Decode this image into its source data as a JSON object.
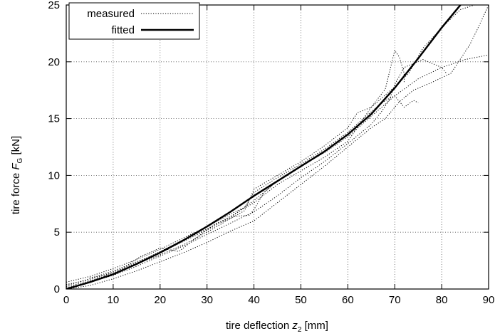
{
  "chart_data": {
    "type": "line",
    "xlabel": {
      "prefix": "tire deflection ",
      "var": "z",
      "sub": "2",
      "suffix": " [mm]"
    },
    "ylabel": {
      "prefix": "tire force ",
      "var": "F",
      "sub": "G",
      "suffix": " [kN]"
    },
    "xlim": [
      0,
      90
    ],
    "ylim": [
      0,
      25
    ],
    "xticks": [
      0,
      10,
      20,
      30,
      40,
      50,
      60,
      70,
      80,
      90
    ],
    "yticks": [
      0,
      5,
      10,
      15,
      20,
      25
    ],
    "grid": true,
    "legend": {
      "position": "top-left"
    },
    "series": [
      {
        "name": "measured",
        "style": "dotted",
        "color": "#000000",
        "traces": [
          [
            [
              0,
              0.3
            ],
            [
              5,
              0.9
            ],
            [
              10,
              1.6
            ],
            [
              15,
              2.4
            ],
            [
              20,
              3.2
            ],
            [
              25,
              4.2
            ],
            [
              30,
              5.2
            ],
            [
              35,
              6.3
            ],
            [
              40,
              7.8
            ],
            [
              45,
              9.5
            ],
            [
              50,
              10.8
            ],
            [
              55,
              12.0
            ],
            [
              60,
              13.4
            ],
            [
              65,
              15.2
            ],
            [
              70,
              17.0
            ],
            [
              75,
              18.5
            ],
            [
              80,
              19.5
            ],
            [
              85,
              20.2
            ],
            [
              90,
              20.6
            ]
          ],
          [
            [
              0,
              0.6
            ],
            [
              5,
              1.1
            ],
            [
              10,
              1.8
            ],
            [
              15,
              2.6
            ],
            [
              20,
              3.5
            ],
            [
              25,
              4.5
            ],
            [
              30,
              5.5
            ],
            [
              35,
              6.6
            ],
            [
              38,
              7.2
            ],
            [
              40,
              8.5
            ],
            [
              45,
              9.8
            ],
            [
              50,
              11.0
            ],
            [
              55,
              12.3
            ],
            [
              60,
              13.8
            ],
            [
              65,
              15.6
            ],
            [
              68,
              16.6
            ],
            [
              70,
              17.0
            ],
            [
              72,
              16.0
            ],
            [
              74,
              16.6
            ],
            [
              75,
              16.4
            ]
          ],
          [
            [
              0,
              0.1
            ],
            [
              5,
              0.6
            ],
            [
              10,
              1.2
            ],
            [
              15,
              2.0
            ],
            [
              20,
              2.9
            ],
            [
              25,
              3.8
            ],
            [
              30,
              4.8
            ],
            [
              35,
              5.8
            ],
            [
              40,
              6.8
            ],
            [
              45,
              8.2
            ],
            [
              50,
              9.8
            ],
            [
              55,
              11.2
            ],
            [
              60,
              12.8
            ],
            [
              65,
              14.5
            ],
            [
              67,
              15.5
            ],
            [
              68,
              16.1
            ],
            [
              69,
              16.8
            ],
            [
              70,
              18.0
            ],
            [
              72,
              19.5
            ],
            [
              76,
              20.2
            ],
            [
              80,
              19.5
            ],
            [
              81,
              19.0
            ]
          ],
          [
            [
              0,
              0.2
            ],
            [
              5,
              0.7
            ],
            [
              10,
              1.4
            ],
            [
              15,
              2.2
            ],
            [
              20,
              3.0
            ],
            [
              25,
              3.9
            ],
            [
              30,
              5.0
            ],
            [
              35,
              6.2
            ],
            [
              38,
              6.9
            ],
            [
              40,
              8.8
            ],
            [
              45,
              10.0
            ],
            [
              50,
              11.2
            ],
            [
              55,
              12.6
            ],
            [
              60,
              14.2
            ],
            [
              62,
              15.5
            ],
            [
              65,
              16.0
            ],
            [
              70,
              17.8
            ],
            [
              73,
              19.0
            ],
            [
              76,
              21.2
            ],
            [
              80,
              23.0
            ],
            [
              84,
              24.6
            ],
            [
              87,
              25.0
            ]
          ],
          [
            [
              0,
              0.4
            ],
            [
              5,
              0.8
            ],
            [
              10,
              1.5
            ],
            [
              15,
              2.3
            ],
            [
              20,
              3.3
            ],
            [
              25,
              4.3
            ],
            [
              30,
              5.3
            ],
            [
              35,
              6.4
            ],
            [
              40,
              7.6
            ],
            [
              45,
              9.2
            ],
            [
              50,
              10.4
            ],
            [
              55,
              11.6
            ],
            [
              60,
              13.0
            ],
            [
              63,
              14.8
            ],
            [
              65,
              16.0
            ],
            [
              68,
              17.6
            ],
            [
              70,
              21.0
            ],
            [
              71,
              20.4
            ],
            [
              72,
              19.0
            ],
            [
              72,
              18.2
            ]
          ],
          [
            [
              0,
              0.0
            ],
            [
              5,
              0.3
            ],
            [
              10,
              0.9
            ],
            [
              15,
              1.6
            ],
            [
              20,
              2.4
            ],
            [
              25,
              3.2
            ],
            [
              30,
              4.1
            ],
            [
              35,
              5.1
            ],
            [
              40,
              6.0
            ],
            [
              45,
              7.6
            ],
            [
              50,
              9.2
            ],
            [
              55,
              10.8
            ],
            [
              60,
              12.5
            ],
            [
              65,
              14.2
            ],
            [
              68,
              15.0
            ],
            [
              71,
              16.5
            ],
            [
              74,
              17.5
            ],
            [
              78,
              18.2
            ],
            [
              82,
              19.0
            ],
            [
              86,
              21.5
            ],
            [
              88,
              23.2
            ],
            [
              90,
              25.0
            ]
          ],
          [
            [
              5,
              1.0
            ],
            [
              8,
              1.2
            ],
            [
              12,
              1.8
            ],
            [
              16,
              2.9
            ],
            [
              20,
              3.6
            ],
            [
              24,
              3.3
            ],
            [
              28,
              4.6
            ],
            [
              32,
              5.8
            ],
            [
              36,
              6.4
            ],
            [
              39,
              6.5
            ],
            [
              40,
              7.0
            ],
            [
              42,
              8.4
            ],
            [
              44,
              9.2
            ]
          ]
        ]
      },
      {
        "name": "fitted",
        "style": "solid",
        "color": "#000000",
        "points": [
          [
            0,
            0.0
          ],
          [
            5,
            0.6
          ],
          [
            10,
            1.3
          ],
          [
            15,
            2.2
          ],
          [
            20,
            3.2
          ],
          [
            25,
            4.3
          ],
          [
            30,
            5.5
          ],
          [
            35,
            6.8
          ],
          [
            40,
            8.2
          ],
          [
            45,
            9.5
          ],
          [
            50,
            10.8
          ],
          [
            55,
            12.1
          ],
          [
            60,
            13.6
          ],
          [
            65,
            15.4
          ],
          [
            70,
            17.7
          ],
          [
            75,
            20.3
          ],
          [
            80,
            23.0
          ],
          [
            84,
            25.0
          ]
        ]
      }
    ]
  }
}
